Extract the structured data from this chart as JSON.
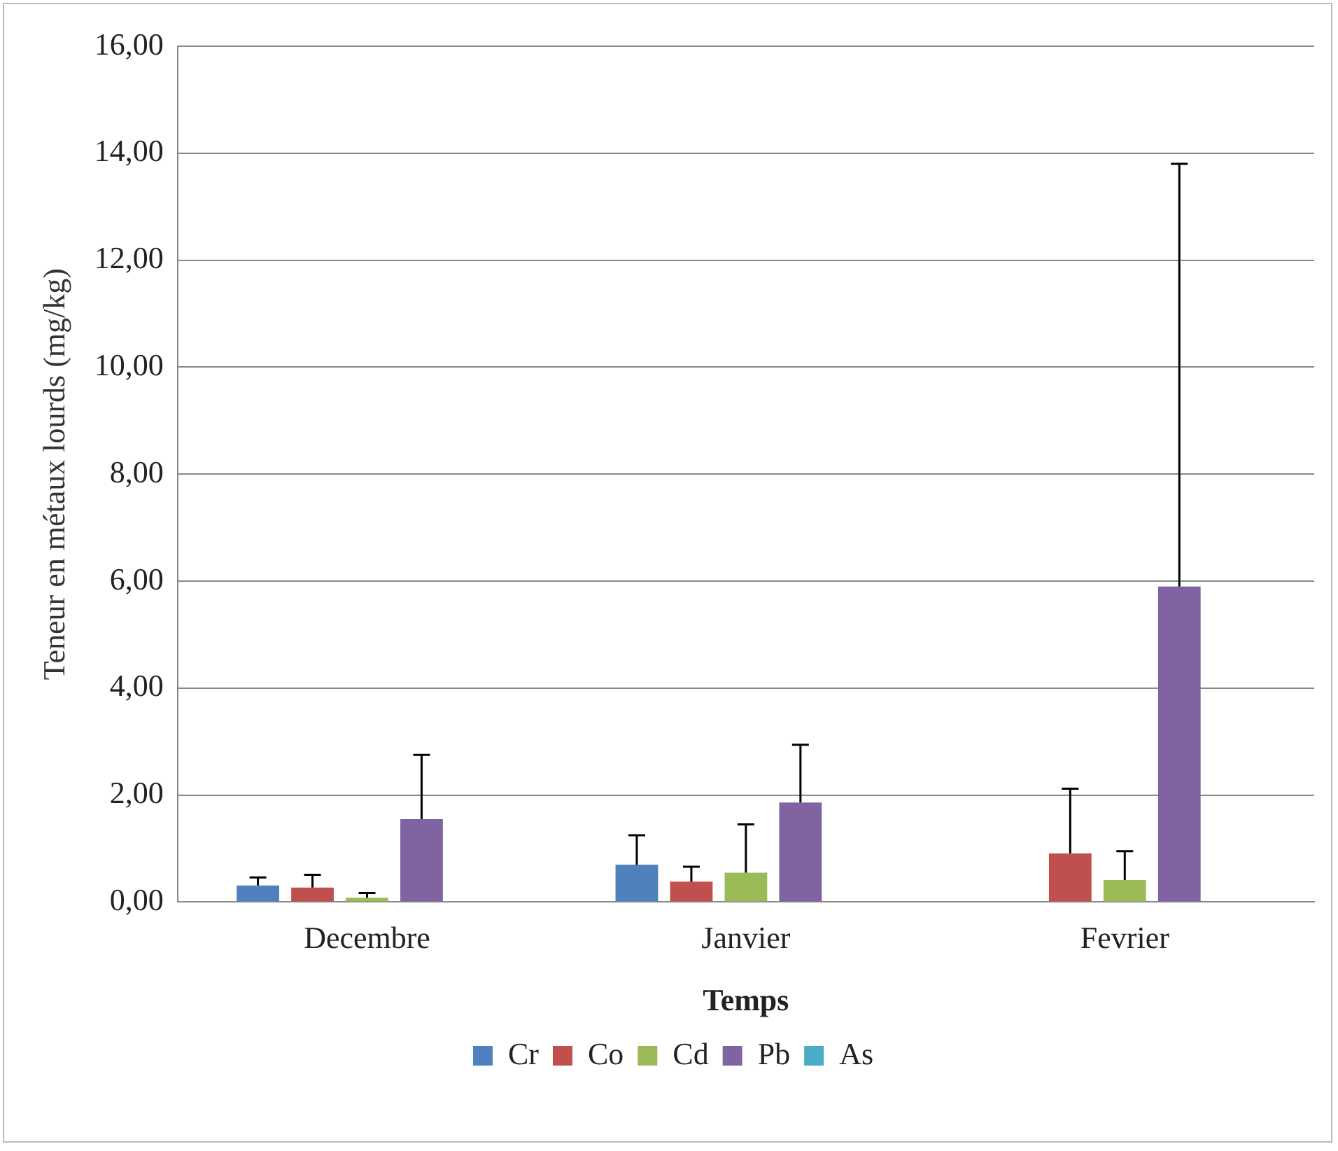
{
  "chart_data": {
    "type": "bar",
    "xlabel": "Temps",
    "ylabel": "Teneur en métaux lourds (mg/kg)",
    "categories": [
      "Decembre",
      "Janvier",
      "Fevrier"
    ],
    "series": [
      {
        "name": "Cr",
        "color": "#4f81bd",
        "values": [
          0.31,
          0.7,
          null
        ],
        "errors": [
          [
            0.31,
            0.46
          ],
          [
            0.7,
            1.25
          ],
          null
        ]
      },
      {
        "name": "Co",
        "color": "#c0504d",
        "values": [
          0.27,
          0.38,
          0.91
        ],
        "errors": [
          [
            0.27,
            0.51
          ],
          [
            0.38,
            0.66
          ],
          [
            0.91,
            2.12
          ]
        ]
      },
      {
        "name": "Cd",
        "color": "#9bbb59",
        "values": [
          0.08,
          0.55,
          0.41
        ],
        "errors": [
          [
            0.08,
            0.17
          ],
          [
            0.55,
            1.45
          ],
          [
            0.41,
            0.95
          ]
        ]
      },
      {
        "name": "Pb",
        "color": "#8064a2",
        "values": [
          1.55,
          1.86,
          5.9
        ],
        "errors": [
          [
            1.55,
            2.75
          ],
          [
            1.86,
            2.94
          ],
          [
            5.9,
            13.8
          ]
        ]
      },
      {
        "name": "As",
        "color": "#4bacc6",
        "values": [
          null,
          null,
          null
        ]
      }
    ],
    "ylim": [
      0,
      16
    ],
    "yticks": [
      {
        "value": 0,
        "label": "0,00"
      },
      {
        "value": 2,
        "label": "2,00"
      },
      {
        "value": 4,
        "label": "4,00"
      },
      {
        "value": 6,
        "label": "6,00"
      },
      {
        "value": 8,
        "label": "8,00"
      },
      {
        "value": 10,
        "label": "10,00"
      },
      {
        "value": 12,
        "label": "12,00"
      },
      {
        "value": 14,
        "label": "14,00"
      },
      {
        "value": 16,
        "label": "16,00"
      }
    ],
    "grid": "y",
    "legend": "bottom"
  }
}
